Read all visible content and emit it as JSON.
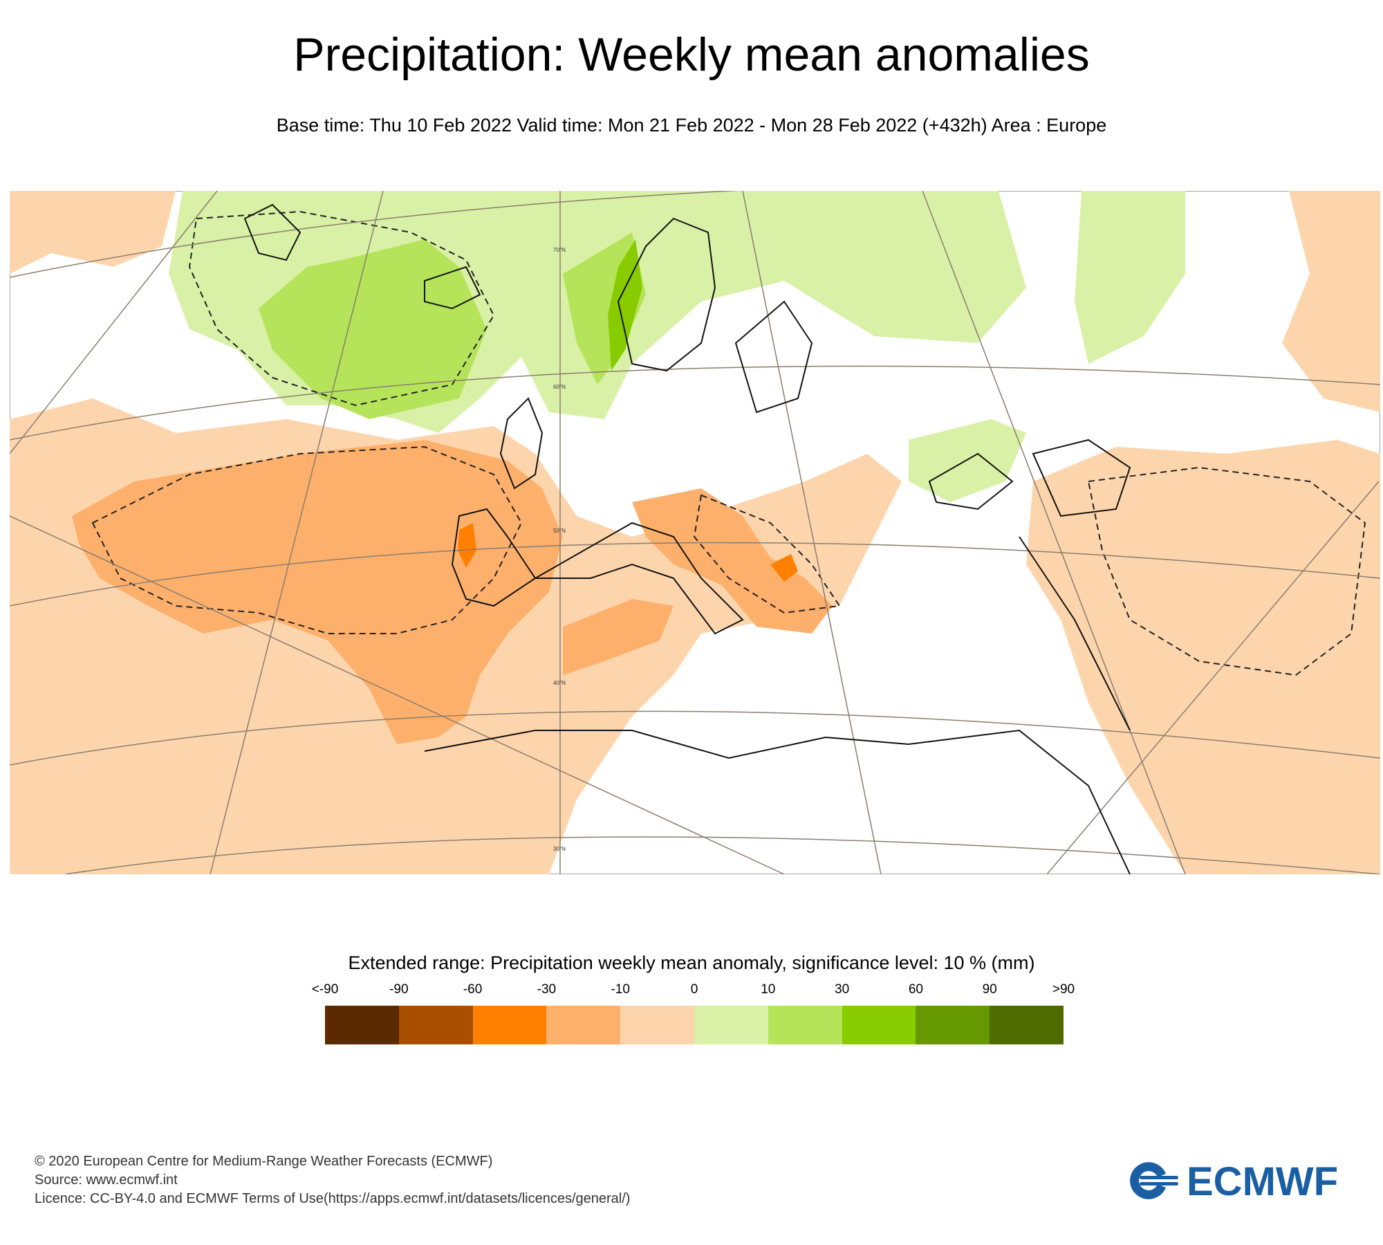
{
  "header": {
    "title": "Precipitation: Weekly mean anomalies",
    "subtitle": "Base time: Thu 10 Feb 2022 Valid time: Mon 21 Feb 2022 - Mon 28 Feb 2022 (+432h) Area : Europe"
  },
  "map": {
    "area": "Europe",
    "latitude_labels": [
      "70°N",
      "60°N",
      "50°N",
      "40°N",
      "30°N"
    ],
    "regions": [
      {
        "name": "North Atlantic / Norwegian Sea",
        "anomaly_class": "10 to 30",
        "color": "#b5e45b"
      },
      {
        "name": "Scandinavia / Northern Russia",
        "anomaly_class": "0 to 10",
        "color": "#d9f1a6"
      },
      {
        "name": "Western Norway coast",
        "anomaly_class": "30 to 60",
        "color": "#88cc00"
      },
      {
        "name": "Iberia / East Atlantic",
        "anomaly_class": "-30 to -10",
        "color": "#fdb06c"
      },
      {
        "name": "Mediterranean / North Africa",
        "anomaly_class": "-10 to 0",
        "color": "#fdd5ad"
      },
      {
        "name": "Portugal coast / Balkans",
        "anomaly_class": "-60 to -30",
        "color": "#ff7f00"
      }
    ]
  },
  "legend": {
    "title": "Extended range: Precipitation weekly mean anomaly, significance level: 10 % (mm)",
    "ticks": [
      "<-90",
      "-90",
      "-60",
      "-30",
      "-10",
      "0",
      "10",
      "30",
      "60",
      "90",
      ">90"
    ],
    "colors": [
      "#5c2a00",
      "#a85000",
      "#ff7f00",
      "#fdb06c",
      "#fdd5ad",
      "#d9f1a6",
      "#b5e45b",
      "#88cc00",
      "#669900",
      "#4e6b00"
    ]
  },
  "footer": {
    "line1": "© 2020 European Centre for Medium-Range Weather Forecasts (ECMWF)",
    "line2": "Source: www.ecmwf.int",
    "line3": "Licence: CC-BY-4.0 and ECMWF Terms of Use(https://apps.ecmwf.int/datasets/licences/general/)"
  },
  "logo": {
    "text": "ECMWF",
    "color": "#1a5fa4"
  }
}
